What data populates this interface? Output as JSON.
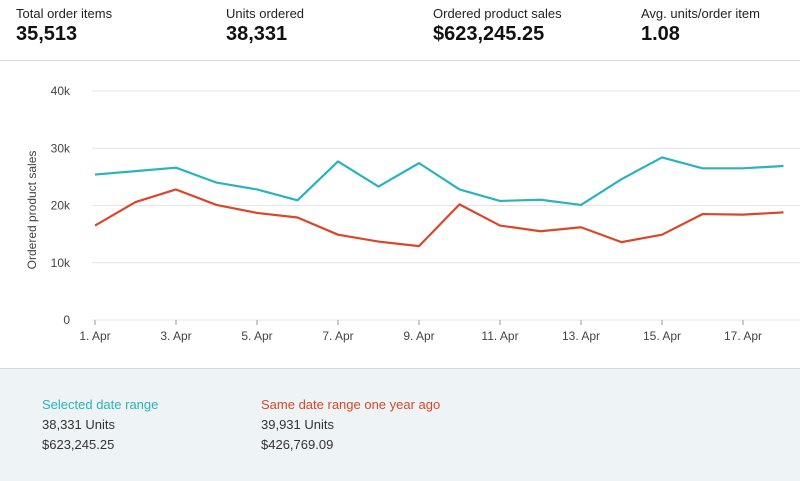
{
  "metrics": [
    {
      "label": "Total order items",
      "value": "35,513"
    },
    {
      "label": "Units ordered",
      "value": "38,331"
    },
    {
      "label": "Ordered product sales",
      "value": "$623,245.25"
    },
    {
      "label": "Avg. units/order item",
      "value": "1.08"
    }
  ],
  "legend": {
    "current": {
      "title": "Selected date range",
      "units": "38,331 Units",
      "sales": "$623,245.25"
    },
    "previous": {
      "title": "Same date range one year ago",
      "units": "39,931 Units",
      "sales": "$426,769.09"
    }
  },
  "colors": {
    "current": "#2ab3bf",
    "previous": "#d9472b",
    "grid": "#e3e6e6",
    "axis_text": "#444444"
  },
  "chart_data": {
    "type": "line",
    "ylabel": "Ordered product sales",
    "xlabel": "",
    "ylim": [
      0,
      40000
    ],
    "yticks": [
      0,
      10000,
      20000,
      30000,
      40000
    ],
    "ytick_labels": [
      "0",
      "10k",
      "20k",
      "30k",
      "40k"
    ],
    "x": [
      1,
      2,
      3,
      4,
      5,
      6,
      7,
      8,
      9,
      10,
      11,
      12,
      13,
      14,
      15,
      16,
      17,
      18
    ],
    "xtick_labels": [
      {
        "x": 1,
        "label": "1. Apr"
      },
      {
        "x": 3,
        "label": "3. Apr"
      },
      {
        "x": 5,
        "label": "5. Apr"
      },
      {
        "x": 7,
        "label": "7. Apr"
      },
      {
        "x": 9,
        "label": "9. Apr"
      },
      {
        "x": 11,
        "label": "11. Apr"
      },
      {
        "x": 13,
        "label": "13. Apr"
      },
      {
        "x": 15,
        "label": "15. Apr"
      },
      {
        "x": 17,
        "label": "17. Apr"
      }
    ],
    "series": [
      {
        "name": "Selected date range",
        "color": "#2ab3bf",
        "values": [
          25400,
          26000,
          26600,
          24000,
          22800,
          20900,
          27700,
          23300,
          27400,
          22800,
          20800,
          21000,
          20100,
          24600,
          28400,
          26500,
          26500,
          26900
        ]
      },
      {
        "name": "Same date range one year ago",
        "color": "#d9472b",
        "values": [
          16500,
          20600,
          22800,
          20100,
          18700,
          17900,
          14900,
          13700,
          12900,
          20200,
          16500,
          15500,
          16200,
          13600,
          14900,
          18500,
          18400,
          18800
        ]
      }
    ],
    "grid": true
  }
}
